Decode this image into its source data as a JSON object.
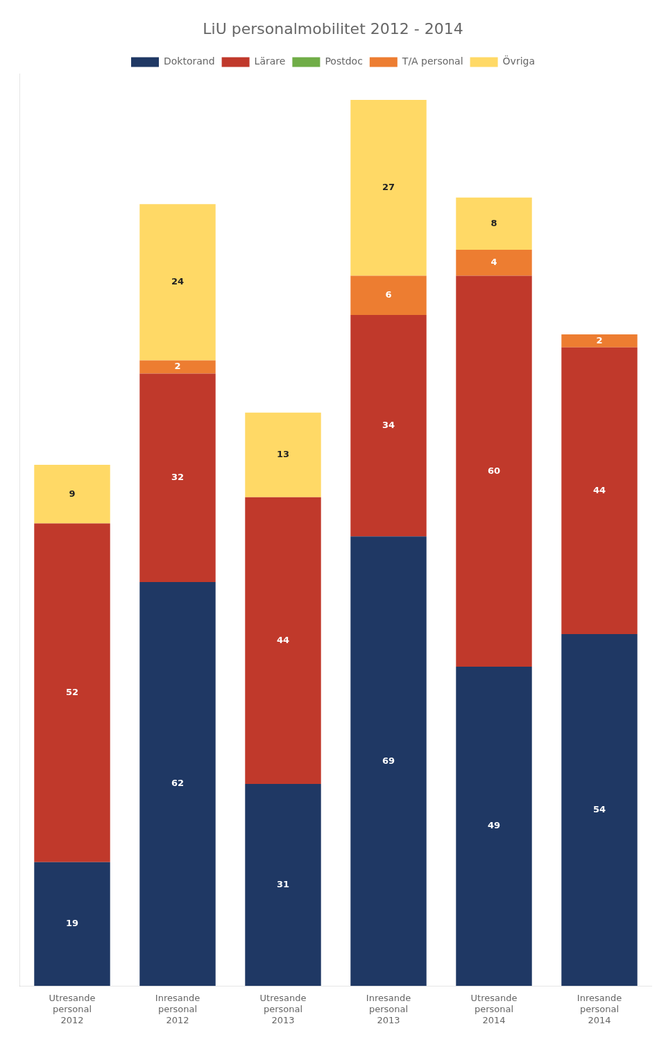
{
  "chart_data": {
    "type": "bar",
    "title": "LiU personalmobilitet 2012 - 2014",
    "categories": [
      "Utresande\npersonal\n2012",
      "Inresande\npersonal\n2012",
      "Utresande\npersonal\n2013",
      "Inresande\npersonal\n2013",
      "Utresande\npersonal\n2014",
      "Inresande\npersonal\n2014"
    ],
    "series": [
      {
        "name": "Doktorand",
        "color": "#1F3864",
        "values": [
          19,
          62,
          31,
          69,
          49,
          54
        ]
      },
      {
        "name": "Lärare",
        "color": "#C0392B",
        "values": [
          52,
          32,
          44,
          34,
          60,
          44
        ]
      },
      {
        "name": "Postdoc",
        "color": "#70AD47",
        "values": [
          0,
          0,
          0,
          0,
          0,
          0
        ]
      },
      {
        "name": "T/A personal",
        "color": "#ED7D31",
        "values": [
          0,
          2,
          0,
          6,
          4,
          2
        ]
      },
      {
        "name": "Övriga",
        "color": "#FFD966",
        "values": [
          9,
          24,
          13,
          27,
          8,
          0
        ]
      }
    ],
    "stacked": true,
    "data_labels": true,
    "legend": "top",
    "grid": false,
    "tick_labels": "x",
    "ylim": [
      0,
      140
    ]
  }
}
